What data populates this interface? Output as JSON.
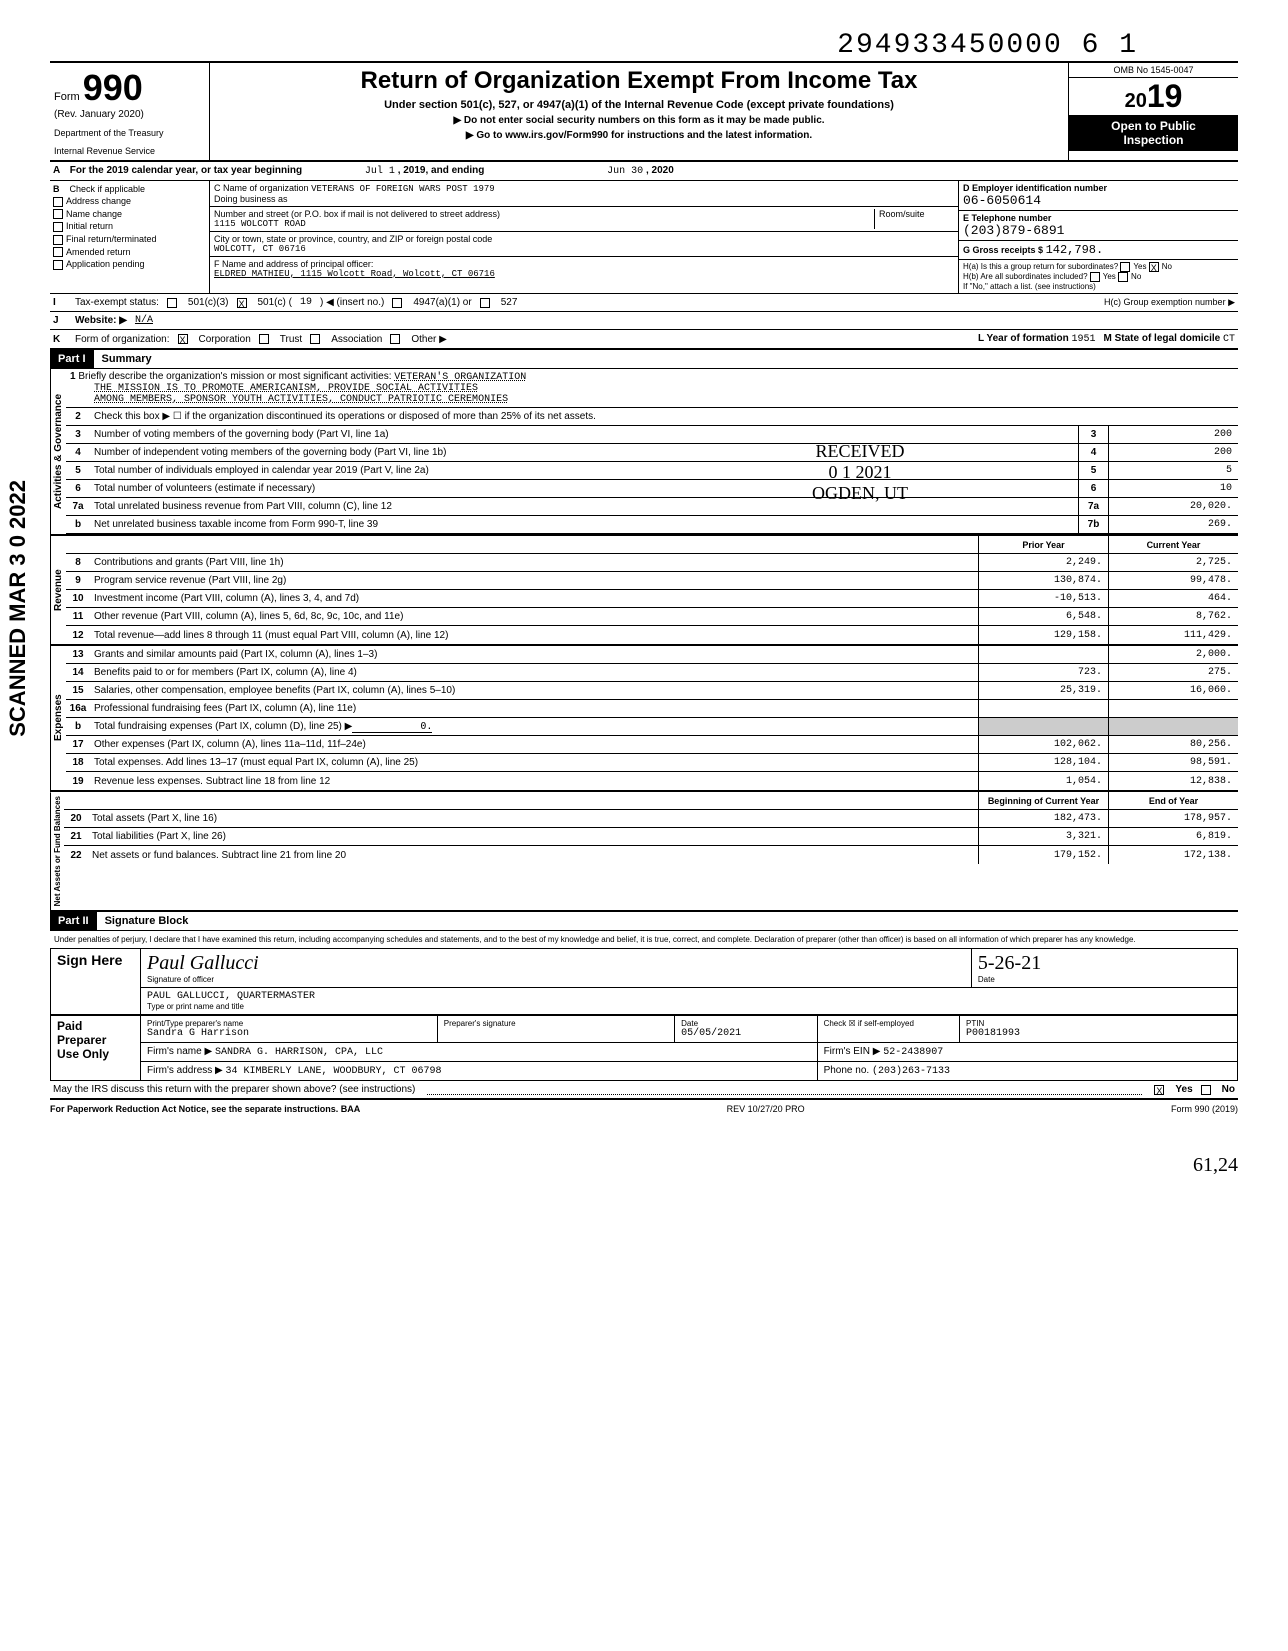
{
  "top_number": "294933450000 6   1",
  "form": {
    "number": "990",
    "form_label": "Form",
    "rev": "(Rev. January 2020)",
    "dept1": "Department of the Treasury",
    "dept2": "Internal Revenue Service",
    "title": "Return of Organization Exempt From Income Tax",
    "subtitle": "Under section 501(c), 527, or 4947(a)(1) of the Internal Revenue Code (except private foundations)",
    "note1": "▶ Do not enter social security numbers on this form as it may be made public.",
    "note2": "▶ Go to www.irs.gov/Form990 for instructions and the latest information.",
    "omb": "OMB No 1545-0047",
    "year_prefix": "20",
    "year": "19",
    "open1": "Open to Public",
    "open2": "Inspection"
  },
  "line_a": {
    "label": "For the 2019 calendar year, or tax year beginning",
    "begin": "Jul 1",
    "mid": ", 2019, and ending",
    "end_month": "Jun 30",
    "end_year": ", 2020"
  },
  "col_b": {
    "header": "Check if applicable",
    "items": [
      "Address change",
      "Name change",
      "Initial return",
      "Final return/terminated",
      "Amended return",
      "Application pending"
    ]
  },
  "col_c": {
    "name_label": "C Name of organization",
    "name": "VETERANS OF FOREIGN WARS POST 1979",
    "dba": "Doing business as",
    "street_label": "Number and street (or P.O. box if mail is not delivered to street address)",
    "street": "1115 WOLCOTT ROAD",
    "room_label": "Room/suite",
    "city_label": "City or town, state or province, country, and ZIP or foreign postal code",
    "city": "WOLCOTT, CT 06716",
    "officer_label": "F Name and address of principal officer:",
    "officer": "ELDRED MATHIEU, 1115 Wolcott Road, Wolcott, CT 06716"
  },
  "col_d": {
    "ein_label": "D Employer identification number",
    "ein": "06-6050614",
    "phone_label": "E Telephone number",
    "phone": "(203)879-6891",
    "gross_label": "G Gross receipts $",
    "gross": "142,798.",
    "ha_label": "H(a) Is this a group return for subordinates?",
    "hb_label": "H(b) Are all subordinates included?",
    "hb_note": "If \"No,\" attach a list. (see instructions)",
    "hc_label": "H(c) Group exemption number ▶"
  },
  "row_i": {
    "label": "Tax-exempt status:",
    "opt1": "501(c)(3)",
    "opt2": "501(c) (",
    "insert": "19",
    "opt2b": ") ◀ (insert no.)",
    "opt3": "4947(a)(1) or",
    "opt4": "527"
  },
  "row_j": {
    "label": "Website: ▶",
    "value": "N/A"
  },
  "row_k": {
    "label": "Form of organization:",
    "opts": [
      "Corporation",
      "Trust",
      "Association",
      "Other ▶"
    ],
    "year_label": "L Year of formation",
    "year": "1951",
    "state_label": "M State of legal domicile",
    "state": "CT"
  },
  "part1": {
    "header": "Part I",
    "title": "Summary"
  },
  "activities": {
    "side": "Activities & Governance",
    "line1": "Briefly describe the organization's mission or most significant activities:",
    "mission1": "VETERAN'S ORGANIZATION",
    "mission2": "THE MISSION IS TO PROMOTE AMERICANISM, PROVIDE SOCIAL ACTIVITIES",
    "mission3": "AMONG MEMBERS, SPONSOR YOUTH ACTIVITIES, CONDUCT PATRIOTIC CEREMONIES",
    "line2": "Check this box ▶ ☐ if the organization discontinued its operations or disposed of more than 25% of its net assets.",
    "line3": "Number of voting members of the governing body (Part VI, line 1a)",
    "val3": "200",
    "line4": "Number of independent voting members of the governing body (Part VI, line 1b)",
    "val4": "200",
    "line5": "Total number of individuals employed in calendar year 2019 (Part V, line 2a)",
    "val5": "5",
    "line6": "Total number of volunteers (estimate if necessary)",
    "val6": "10",
    "line7a": "Total unrelated business revenue from Part VIII, column (C), line 12",
    "val7a": "20,020.",
    "line7b": "Net unrelated business taxable income from Form 990-T, line 39",
    "val7b": "269."
  },
  "received_stamp": {
    "line1": "RECEIVED",
    "line2": "0 1  2021",
    "line3": "OGDEN, UT"
  },
  "cols": {
    "prior": "Prior Year",
    "current": "Current Year",
    "begin": "Beginning of Current Year",
    "end": "End of Year"
  },
  "revenue": {
    "side": "Revenue",
    "rows": [
      {
        "n": "8",
        "d": "Contributions and grants (Part VIII, line 1h)",
        "p": "2,249.",
        "c": "2,725."
      },
      {
        "n": "9",
        "d": "Program service revenue (Part VIII, line 2g)",
        "p": "130,874.",
        "c": "99,478."
      },
      {
        "n": "10",
        "d": "Investment income (Part VIII, column (A), lines 3, 4, and 7d)",
        "p": "-10,513.",
        "c": "464."
      },
      {
        "n": "11",
        "d": "Other revenue (Part VIII, column (A), lines 5, 6d, 8c, 9c, 10c, and 11e)",
        "p": "6,548.",
        "c": "8,762."
      },
      {
        "n": "12",
        "d": "Total revenue—add lines 8 through 11 (must equal Part VIII, column (A), line 12)",
        "p": "129,158.",
        "c": "111,429."
      }
    ]
  },
  "expenses": {
    "side": "Expenses",
    "rows": [
      {
        "n": "13",
        "d": "Grants and similar amounts paid (Part IX, column (A), lines 1–3)",
        "p": "",
        "c": "2,000."
      },
      {
        "n": "14",
        "d": "Benefits paid to or for members (Part IX, column (A), line 4)",
        "p": "723.",
        "c": "275."
      },
      {
        "n": "15",
        "d": "Salaries, other compensation, employee benefits (Part IX, column (A), lines 5–10)",
        "p": "25,319.",
        "c": "16,060."
      },
      {
        "n": "16a",
        "d": "Professional fundraising fees (Part IX, column (A), line 11e)",
        "p": "",
        "c": ""
      },
      {
        "n": "b",
        "d": "Total fundraising expenses (Part IX, column (D), line 25) ▶",
        "extra": "0.",
        "gray": true
      },
      {
        "n": "17",
        "d": "Other expenses (Part IX, column (A), lines 11a–11d, 11f–24e)",
        "p": "102,062.",
        "c": "80,256."
      },
      {
        "n": "18",
        "d": "Total expenses. Add lines 13–17 (must equal Part IX, column (A), line 25)",
        "p": "128,104.",
        "c": "98,591."
      },
      {
        "n": "19",
        "d": "Revenue less expenses. Subtract line 18 from line 12",
        "p": "1,054.",
        "c": "12,838."
      }
    ]
  },
  "netassets": {
    "side": "Net Assets or Fund Balances",
    "rows": [
      {
        "n": "20",
        "d": "Total assets (Part X, line 16)",
        "p": "182,473.",
        "c": "178,957."
      },
      {
        "n": "21",
        "d": "Total liabilities (Part X, line 26)",
        "p": "3,321.",
        "c": "6,819."
      },
      {
        "n": "22",
        "d": "Net assets or fund balances. Subtract line 21 from line 20",
        "p": "179,152.",
        "c": "172,138."
      }
    ]
  },
  "part2": {
    "header": "Part II",
    "title": "Signature Block",
    "penalties": "Under penalties of perjury, I declare that I have examined this return, including accompanying schedules and statements, and to the best of my knowledge and belief, it is true, correct, and complete. Declaration of preparer (other than officer) is based on all information of which preparer has any knowledge."
  },
  "sign": {
    "label": "Sign Here",
    "sig_label": "Signature of officer",
    "date_label": "Date",
    "date_val": "5-26-21",
    "name": "PAUL GALLUCCI, QUARTERMASTER",
    "name_label": "Type or print name and title"
  },
  "preparer": {
    "label1": "Paid",
    "label2": "Preparer",
    "label3": "Use Only",
    "name_label": "Print/Type preparer's name",
    "name": "Sandra G Harrison",
    "sig_label": "Preparer's signature",
    "date_label": "Date",
    "date": "05/05/2021",
    "check_label": "Check ☒ if self-employed",
    "ptin_label": "PTIN",
    "ptin": "P00181993",
    "firm_label": "Firm's name ▶",
    "firm": "SANDRA G. HARRISON, CPA, LLC",
    "ein_label": "Firm's EIN ▶",
    "ein": "52-2438907",
    "addr_label": "Firm's address ▶",
    "addr": "34 KIMBERLY LANE, WOODBURY, CT 06798",
    "phone_label": "Phone no.",
    "phone": "(203)263-7133",
    "discuss": "May the IRS discuss this return with the preparer shown above? (see instructions)",
    "yes": "Yes",
    "no": "No"
  },
  "footer": {
    "left": "For Paperwork Reduction Act Notice, see the separate instructions. BAA",
    "mid": "REV 10/27/20 PRO",
    "right": "Form 990 (2019)"
  },
  "scanned": "SCANNED MAR 3 0 2022",
  "handwritten": "61,24",
  "letters": {
    "A": "A",
    "B": "B",
    "I": "I",
    "J": "J",
    "K": "K"
  },
  "yes": "Yes",
  "no": "No"
}
